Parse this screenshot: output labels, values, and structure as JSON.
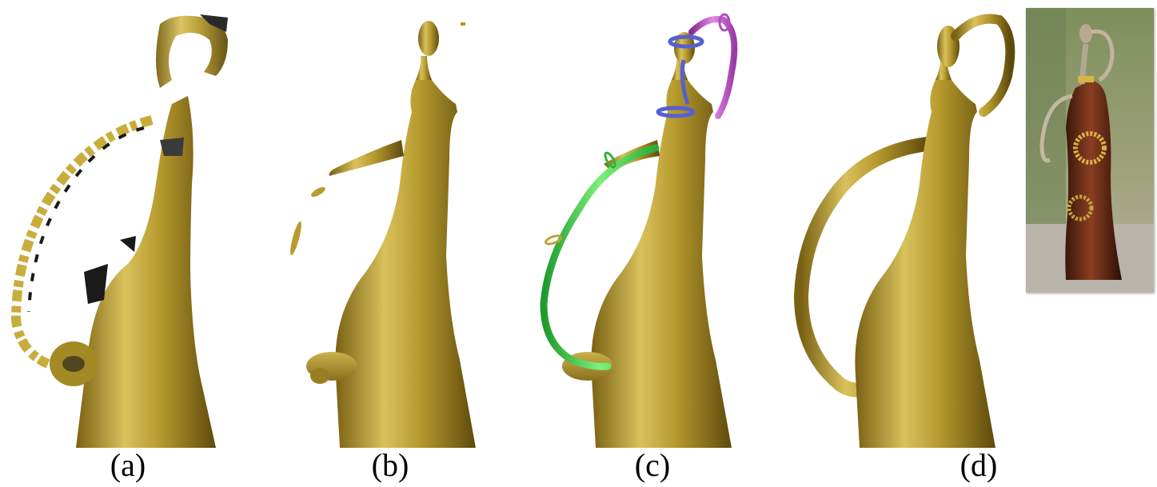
{
  "figure": {
    "panels": [
      {
        "id": "a",
        "caption": "(a)"
      },
      {
        "id": "b",
        "caption": "(b)"
      },
      {
        "id": "c",
        "caption": "(c)"
      },
      {
        "id": "d",
        "caption": "(d)"
      }
    ],
    "colors": {
      "gold": "#b59a2c",
      "gold_light": "#e3cc6a",
      "gold_dark": "#6b5510",
      "green_handle": "#4cd24c",
      "purple_handle": "#c060c8",
      "blue_ring": "#5560d0",
      "photo_body": "#6b2e1a"
    }
  }
}
